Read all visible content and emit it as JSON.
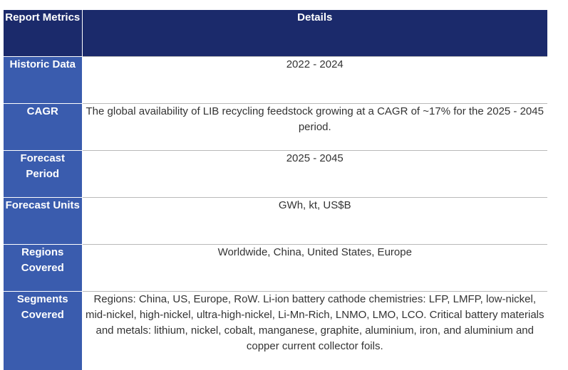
{
  "table": {
    "headers": {
      "metric": "Report Metrics",
      "details": "Details"
    },
    "rows": [
      {
        "metric": "Historic Data",
        "details": "2022 - 2024"
      },
      {
        "metric": "CAGR",
        "details": "The global availability of LIB recycling feedstock growing at a CAGR of ~17% for the 2025 - 2045 period."
      },
      {
        "metric": "Forecast Period",
        "details": "2025 - 2045"
      },
      {
        "metric": "Forecast Units",
        "details": "GWh, kt, US$B"
      },
      {
        "metric": "Regions Covered",
        "details": "Worldwide, China, United States, Europe"
      },
      {
        "metric": "Segments Covered",
        "details": "Regions: China, US, Europe, RoW. Li-ion battery cathode chemistries: LFP, LMFP, low-nickel, mid-nickel, high-nickel, ultra-high-nickel, Li-Mn-Rich, LNMO, LMO, LCO. Critical battery materials and metals: lithium, nickel, cobalt, manganese, graphite, aluminium, iron, and aluminium and copper current collector foils."
      }
    ]
  },
  "colors": {
    "header_bg": "#1b2a6b",
    "metric_bg": "#3a5cae",
    "header_text": "#ffffff",
    "detail_text": "#333333"
  }
}
